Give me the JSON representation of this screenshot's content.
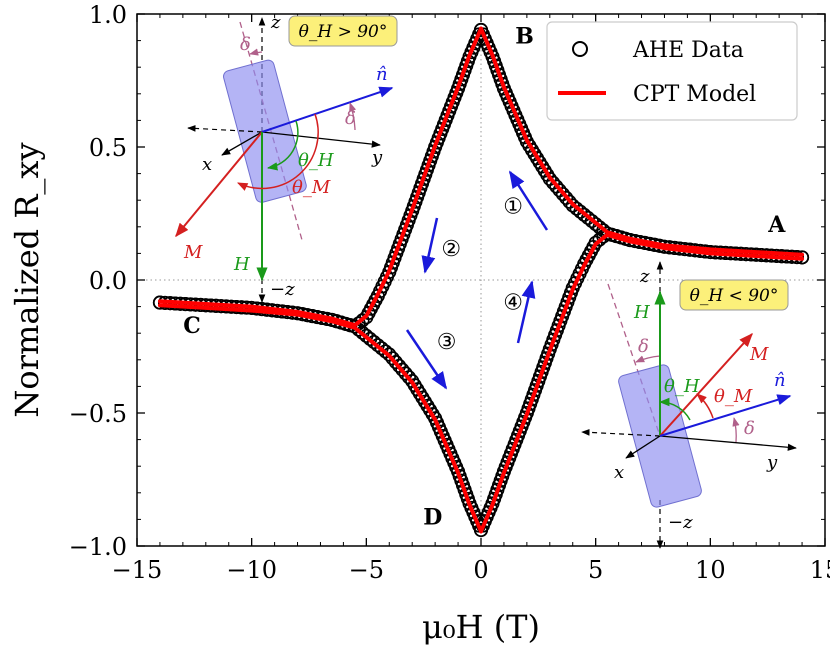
{
  "chart_data": {
    "type": "line",
    "xlabel": "μ₀H (T)",
    "ylabel": "Normalized R_xy",
    "xlim": [
      -15,
      15
    ],
    "ylim": [
      -1.0,
      1.0
    ],
    "x_ticks": [
      -15,
      -10,
      -5,
      0,
      5,
      10,
      15
    ],
    "x_tick_labels": [
      "−15",
      "−10",
      "−5",
      "0",
      "5",
      "10",
      "15"
    ],
    "y_ticks": [
      -1.0,
      -0.5,
      0.0,
      0.5,
      1.0
    ],
    "y_tick_labels": [
      "−1.0",
      "−0.5",
      "0.0",
      "0.5",
      "1.0"
    ],
    "grid": "dotted zero lines",
    "legend_position": "top-right",
    "legend": [
      {
        "label": "AHE Data",
        "marker": "open-circle",
        "color": "#000000"
      },
      {
        "label": "CPT Model",
        "marker": "line",
        "color": "#ff0000"
      }
    ],
    "series": [
      {
        "name": "AHE Data",
        "style": "open-circles",
        "color": "#000000",
        "branches": [
          {
            "x": [
              14,
              12,
              10,
              8,
              6.5,
              5.5,
              5,
              4,
              3,
              2,
              1,
              0.5,
              0
            ],
            "y": [
              0.085,
              0.095,
              0.105,
              0.125,
              0.15,
              0.175,
              0.21,
              0.28,
              0.38,
              0.52,
              0.72,
              0.84,
              0.94
            ]
          },
          {
            "x": [
              0,
              -0.5,
              -1,
              -2,
              -3,
              -4,
              -4.5,
              -5,
              -5.5,
              -6.5,
              -8,
              -10,
              -12,
              -14
            ],
            "y": [
              0.94,
              0.84,
              0.72,
              0.5,
              0.26,
              0.03,
              -0.06,
              -0.14,
              -0.175,
              -0.15,
              -0.125,
              -0.105,
              -0.095,
              -0.085
            ]
          },
          {
            "x": [
              -14,
              -12,
              -10,
              -8,
              -6.5,
              -5.5,
              -5,
              -4,
              -3,
              -2,
              -1,
              -0.5,
              0
            ],
            "y": [
              -0.085,
              -0.095,
              -0.105,
              -0.125,
              -0.15,
              -0.175,
              -0.21,
              -0.28,
              -0.38,
              -0.52,
              -0.72,
              -0.84,
              -0.94
            ]
          },
          {
            "x": [
              0,
              0.5,
              1,
              2,
              3,
              4,
              4.5,
              5,
              5.5,
              6.5,
              8,
              10,
              12,
              14
            ],
            "y": [
              -0.94,
              -0.84,
              -0.72,
              -0.5,
              -0.26,
              -0.03,
              0.06,
              0.14,
              0.175,
              0.15,
              0.125,
              0.105,
              0.095,
              0.085
            ]
          }
        ]
      },
      {
        "name": "CPT Model",
        "style": "line",
        "color": "#ff0000",
        "branches": [
          {
            "x": [
              14,
              12,
              10,
              8,
              6.5,
              5.5,
              5,
              4,
              3,
              2,
              1,
              0.5,
              0
            ],
            "y": [
              0.095,
              0.105,
              0.115,
              0.13,
              0.155,
              0.18,
              0.215,
              0.285,
              0.385,
              0.525,
              0.725,
              0.845,
              0.945
            ]
          },
          {
            "x": [
              0,
              -0.5,
              -1,
              -2,
              -3,
              -4,
              -4.5,
              -5,
              -5.5,
              -6.5,
              -8,
              -10,
              -12,
              -14
            ],
            "y": [
              0.945,
              0.845,
              0.725,
              0.505,
              0.265,
              0.035,
              -0.055,
              -0.135,
              -0.17,
              -0.145,
              -0.12,
              -0.1,
              -0.09,
              -0.08
            ]
          },
          {
            "x": [
              -14,
              -12,
              -10,
              -8,
              -6.5,
              -5.5,
              -5,
              -4,
              -3,
              -2,
              -1,
              -0.5,
              0
            ],
            "y": [
              -0.095,
              -0.105,
              -0.115,
              -0.13,
              -0.155,
              -0.18,
              -0.215,
              -0.285,
              -0.385,
              -0.525,
              -0.725,
              -0.845,
              -0.945
            ]
          },
          {
            "x": [
              0,
              0.5,
              1,
              2,
              3,
              4,
              4.5,
              5,
              5.5,
              6.5,
              8,
              10,
              12,
              14
            ],
            "y": [
              -0.945,
              -0.845,
              -0.725,
              -0.505,
              -0.265,
              -0.035,
              0.055,
              0.135,
              0.17,
              0.145,
              0.12,
              0.1,
              0.09,
              0.08
            ]
          }
        ]
      }
    ],
    "point_labels": [
      {
        "text": "A",
        "x": 12.9,
        "y": 0.18
      },
      {
        "text": "B",
        "x": 1.9,
        "y": 0.89
      },
      {
        "text": "C",
        "x": -12.6,
        "y": -0.2
      },
      {
        "text": "D",
        "x": -2.1,
        "y": -0.92
      }
    ],
    "step_labels": [
      {
        "text": "①",
        "x": 1.4,
        "y": 0.25
      },
      {
        "text": "②",
        "x": -1.3,
        "y": 0.09
      },
      {
        "text": "③",
        "x": -1.5,
        "y": -0.26
      },
      {
        "text": "④",
        "x": 1.4,
        "y": -0.11
      }
    ],
    "insets": {
      "left_condition": "θ_H > 90°",
      "right_condition": "θ_H < 90°",
      "labels": {
        "z": "z",
        "neg_z": "−z",
        "x": "x",
        "y": "y",
        "n_hat": "n̂",
        "M": "M",
        "H": "H",
        "delta": "δ",
        "theta_H": "θ_H",
        "theta_M": "θ_M"
      }
    }
  }
}
